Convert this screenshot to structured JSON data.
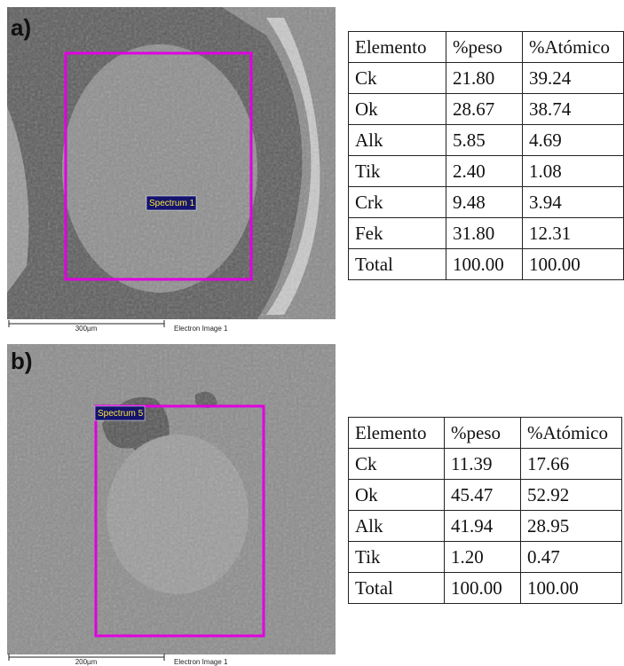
{
  "panels": [
    {
      "label": "a)",
      "image": {
        "spectrum_label": "Spectrum 1",
        "scale_bar": "300µm",
        "caption": "Electron Image 1"
      },
      "table": {
        "header": [
          "Elemento",
          "%peso",
          "%Atómico"
        ],
        "rows": [
          [
            "Ck",
            "21.80",
            "39.24"
          ],
          [
            "Ok",
            "28.67",
            "38.74"
          ],
          [
            "Alk",
            "5.85",
            "4.69"
          ],
          [
            "Tik",
            "2.40",
            "1.08"
          ],
          [
            "Crk",
            "9.48",
            "3.94"
          ],
          [
            "Fek",
            "31.80",
            "12.31"
          ],
          [
            "Total",
            "100.00",
            "100.00"
          ]
        ]
      }
    },
    {
      "label": "b)",
      "image": {
        "spectrum_label": "Spectrum 5",
        "scale_bar": "200µm",
        "caption": "Electron Image 1"
      },
      "table": {
        "header": [
          "Elemento",
          "%peso",
          "%Atómico"
        ],
        "rows": [
          [
            "Ck",
            "11.39",
            "17.66"
          ],
          [
            "Ok",
            "45.47",
            "52.92"
          ],
          [
            "Alk",
            "41.94",
            "28.95"
          ],
          [
            "Tik",
            "1.20",
            "0.47"
          ],
          [
            "Total",
            "100.00",
            "100.00"
          ]
        ]
      }
    }
  ]
}
